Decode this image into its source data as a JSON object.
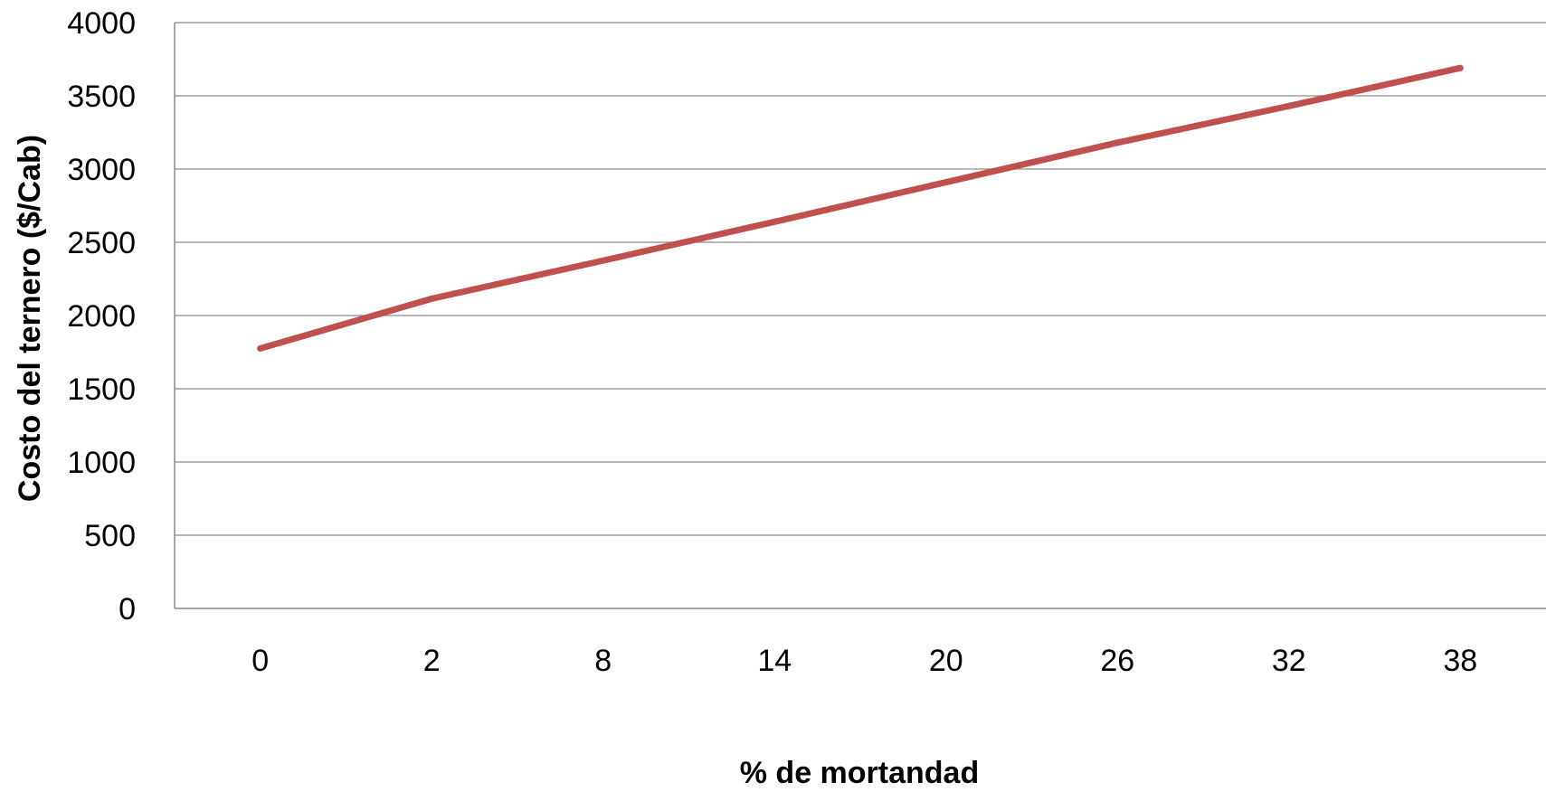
{
  "chart_data": {
    "type": "line",
    "title": "",
    "xlabel": "% de mortandad",
    "ylabel": "Costo del ternero ($/Cab)",
    "categories": [
      "0",
      "2",
      "8",
      "14",
      "20",
      "26",
      "32",
      "38"
    ],
    "ylim": [
      0,
      4000
    ],
    "yticks": [
      "0",
      "500",
      "1000",
      "1500",
      "2000",
      "2500",
      "3000",
      "3500",
      "4000"
    ],
    "grid": true,
    "legend": "none",
    "series": [
      {
        "values": [
          1775,
          2115,
          2375,
          2640,
          2910,
          3180,
          3430,
          3690
        ],
        "color": "#c0504d"
      }
    ],
    "colors": {
      "gridline": "#8c8c8c",
      "axis": "#8c8c8c"
    }
  }
}
